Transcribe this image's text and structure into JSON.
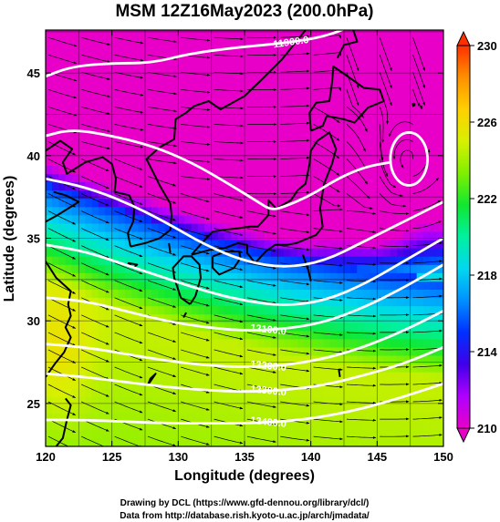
{
  "chart_data": {
    "type": "heatmap",
    "title": "MSM 12Z16May2023 (200.0hPa)",
    "xlabel": "Longitude (degrees)",
    "ylabel": "Latitude  (degrees)",
    "xlim": [
      120,
      150
    ],
    "ylim": [
      22.4,
      47.6
    ],
    "x_ticks": [
      120,
      125,
      130,
      135,
      140,
      145,
      150
    ],
    "y_ticks": [
      25,
      30,
      35,
      40,
      45
    ],
    "colorbar": {
      "min": 210,
      "max": 230,
      "ticks": [
        210,
        214,
        218,
        222,
        226,
        230
      ],
      "extend": "both",
      "colors": [
        "#e800c8",
        "#b000ff",
        "#4000e8",
        "#0030ff",
        "#0090ff",
        "#00d8f0",
        "#00f0a0",
        "#10e830",
        "#80f000",
        "#d8f000",
        "#ffd000",
        "#ff9000",
        "#ff3000"
      ]
    },
    "contours": [
      {
        "label": "11900.0",
        "points": [
          [
            120,
            44.8
          ],
          [
            122,
            45.4
          ],
          [
            125,
            45.6
          ],
          [
            128,
            45.6
          ],
          [
            131,
            46.2
          ],
          [
            135,
            46.6
          ],
          [
            138,
            46.8
          ],
          [
            141,
            47.2
          ],
          [
            143,
            47.8
          ],
          [
            145,
            48.6
          ]
        ]
      },
      {
        "label": "",
        "points": [
          [
            120,
            41.2
          ],
          [
            122,
            41.6
          ],
          [
            125,
            41.2
          ],
          [
            128,
            40.6
          ],
          [
            131,
            39.6
          ],
          [
            134,
            38.2
          ],
          [
            136,
            37.2
          ],
          [
            137,
            36.7
          ],
          [
            138,
            36.9
          ],
          [
            140,
            37.6
          ],
          [
            142,
            38.6
          ],
          [
            144,
            39.3
          ],
          [
            146,
            39.6
          ]
        ]
      },
      {
        "label": "",
        "points": [
          [
            120,
            38.6
          ],
          [
            123,
            38.1
          ],
          [
            126,
            37.2
          ],
          [
            129,
            36.0
          ],
          [
            132,
            34.6
          ],
          [
            135,
            33.6
          ],
          [
            138,
            33.2
          ],
          [
            141,
            33.6
          ],
          [
            144,
            34.8
          ],
          [
            147,
            36.0
          ],
          [
            150,
            37.2
          ]
        ]
      },
      {
        "label": "",
        "points": [
          [
            120,
            34.6
          ],
          [
            123,
            34.2
          ],
          [
            126,
            33.4
          ],
          [
            129,
            32.6
          ],
          [
            132,
            31.8
          ],
          [
            135,
            31.2
          ],
          [
            138,
            30.9
          ],
          [
            141,
            31.2
          ],
          [
            144,
            32.2
          ],
          [
            147,
            33.6
          ],
          [
            150,
            35.0
          ]
        ]
      },
      {
        "label": "12100.0",
        "points": [
          [
            120,
            31.4
          ],
          [
            123,
            31.2
          ],
          [
            126,
            30.6
          ],
          [
            129,
            30.0
          ],
          [
            132,
            29.6
          ],
          [
            135,
            29.4
          ],
          [
            138,
            29.5
          ],
          [
            141,
            29.9
          ],
          [
            144,
            30.8
          ],
          [
            147,
            32.0
          ],
          [
            150,
            33.4
          ]
        ]
      },
      {
        "label": "12200.0",
        "points": [
          [
            120,
            28.6
          ],
          [
            123,
            28.4
          ],
          [
            126,
            28.0
          ],
          [
            129,
            27.6
          ],
          [
            132,
            27.3
          ],
          [
            135,
            27.2
          ],
          [
            138,
            27.3
          ],
          [
            141,
            27.7
          ],
          [
            144,
            28.4
          ],
          [
            147,
            29.4
          ],
          [
            150,
            30.6
          ]
        ]
      },
      {
        "label": "12300.0",
        "points": [
          [
            120,
            26.8
          ],
          [
            123,
            26.6
          ],
          [
            126,
            26.3
          ],
          [
            129,
            26.0
          ],
          [
            132,
            25.8
          ],
          [
            135,
            25.7
          ],
          [
            138,
            25.8
          ],
          [
            141,
            26.1
          ],
          [
            144,
            26.7
          ],
          [
            147,
            27.4
          ],
          [
            150,
            28.4
          ]
        ]
      },
      {
        "label": "12400.0",
        "points": [
          [
            120,
            24.0
          ],
          [
            123,
            24.0
          ],
          [
            126,
            23.9
          ],
          [
            129,
            23.8
          ],
          [
            132,
            23.8
          ],
          [
            135,
            23.8
          ],
          [
            138,
            23.9
          ],
          [
            141,
            24.2
          ],
          [
            144,
            24.7
          ],
          [
            147,
            25.4
          ],
          [
            150,
            26.2
          ]
        ]
      }
    ],
    "closed_contour": {
      "label": "",
      "center": [
        147.4,
        39.8
      ],
      "radius_deg": [
        1.4,
        1.6
      ]
    }
  },
  "footer": {
    "line1": "Drawing by DCL (https://www.gfd-dennou.org/library/dcl/)",
    "line2": "Data from http://database.rish.kyoto-u.ac.jp/arch/jmadata/"
  }
}
